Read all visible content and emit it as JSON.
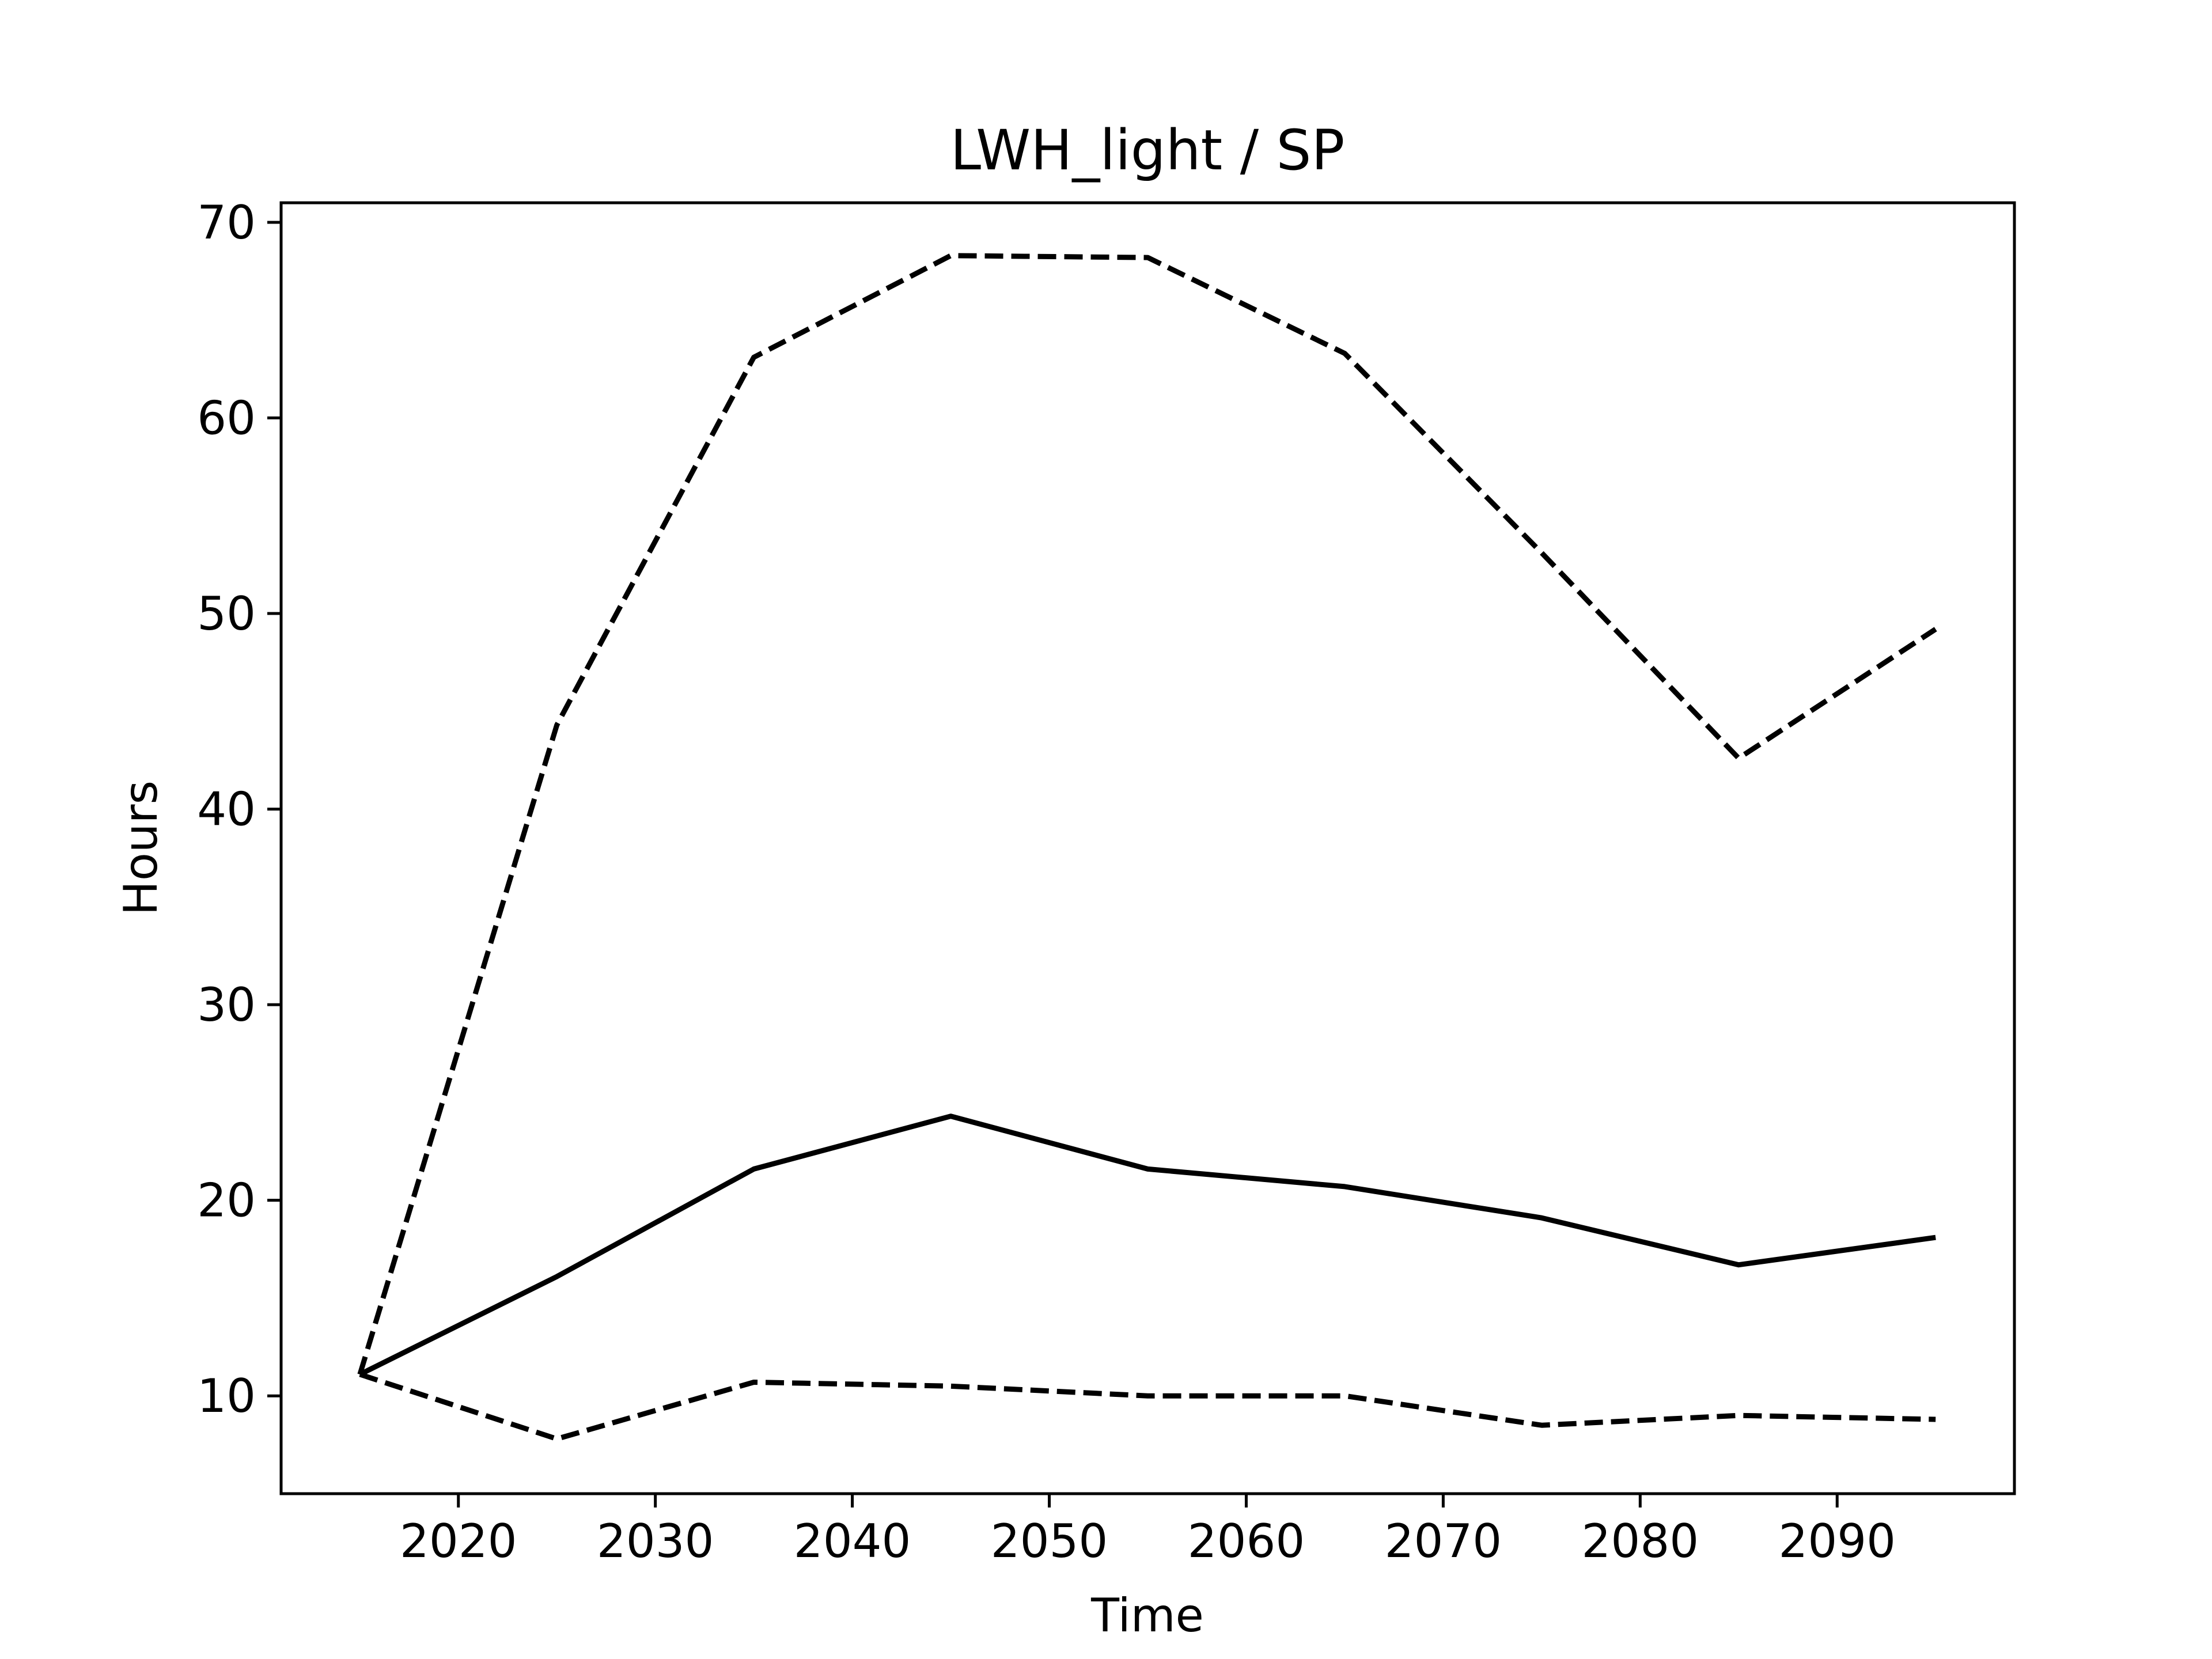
{
  "chart_data": {
    "type": "line",
    "title": "LWH_light / SP",
    "xlabel": "Time",
    "ylabel": "Hours",
    "xlim": [
      2011,
      2099
    ],
    "ylim": [
      5,
      71
    ],
    "xticks": [
      2020,
      2030,
      2040,
      2050,
      2060,
      2070,
      2080,
      2090
    ],
    "yticks": [
      10,
      20,
      30,
      40,
      50,
      60,
      70
    ],
    "grid": false,
    "legend": "none",
    "x": [
      2015,
      2025,
      2035,
      2045,
      2055,
      2065,
      2075,
      2085,
      2095
    ],
    "series": [
      {
        "style": "solid",
        "color": "#000000",
        "values": [
          11.1,
          16.1,
          21.6,
          24.3,
          21.6,
          20.7,
          19.1,
          16.7,
          18.1
        ]
      },
      {
        "style": "dashed",
        "color": "#000000",
        "values": [
          11.1,
          44.3,
          63.1,
          68.3,
          68.2,
          63.3,
          53.1,
          42.6,
          49.2
        ]
      },
      {
        "style": "dashed",
        "color": "#000000",
        "values": [
          11.1,
          7.8,
          10.7,
          10.5,
          10.0,
          10.0,
          8.5,
          9.0,
          8.8
        ]
      }
    ]
  }
}
